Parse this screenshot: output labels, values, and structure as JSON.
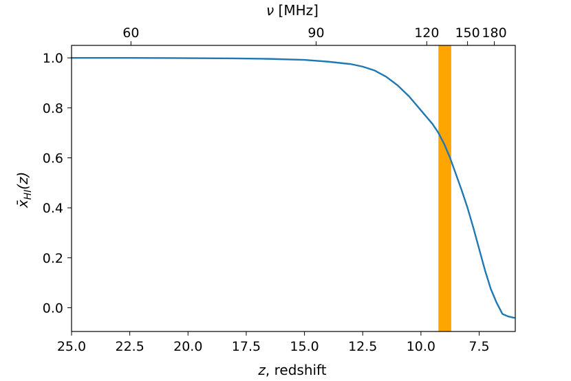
{
  "chart_data": {
    "type": "line",
    "xlabel_var": "z",
    "xlabel_rest": ", redshift",
    "ylabel_main": "x̄",
    "ylabel_sub": "HI",
    "ylabel_arg": "(z)",
    "top_xlabel_var": "ν",
    "top_xlabel_rest": " [MHz]",
    "xlim": [
      25.0,
      5.95
    ],
    "ylim": [
      -0.095,
      1.05
    ],
    "x_ticks": [
      {
        "value": 25.0,
        "label": "25.0"
      },
      {
        "value": 22.5,
        "label": "22.5"
      },
      {
        "value": 20.0,
        "label": "20.0"
      },
      {
        "value": 17.5,
        "label": "17.5"
      },
      {
        "value": 15.0,
        "label": "15.0"
      },
      {
        "value": 12.5,
        "label": "12.5"
      },
      {
        "value": 10.0,
        "label": "10.0"
      },
      {
        "value": 7.5,
        "label": "7.5"
      }
    ],
    "y_ticks": [
      {
        "value": 0.0,
        "label": "0.0"
      },
      {
        "value": 0.2,
        "label": "0.2"
      },
      {
        "value": 0.4,
        "label": "0.4"
      },
      {
        "value": 0.6,
        "label": "0.6"
      },
      {
        "value": 0.8,
        "label": "0.8"
      },
      {
        "value": 1.0,
        "label": "1.0"
      }
    ],
    "top_ticks": [
      {
        "z": 22.45,
        "label": "60"
      },
      {
        "z": 14.5,
        "label": "90"
      },
      {
        "z": 9.75,
        "label": "120"
      },
      {
        "z": 8.0,
        "label": "150"
      },
      {
        "z": 6.85,
        "label": "180"
      }
    ],
    "band": {
      "z_from": 9.25,
      "z_to": 8.7,
      "color": "#ffa500"
    },
    "series": [
      {
        "color": "#1f77b4",
        "x": [
          25.0,
          22.5,
          20.0,
          18.0,
          16.5,
          15.0,
          14.0,
          13.0,
          12.5,
          12.0,
          11.5,
          11.0,
          10.5,
          10.0,
          9.5,
          9.25,
          9.0,
          8.75,
          8.5,
          8.25,
          8.0,
          7.75,
          7.5,
          7.25,
          7.0,
          6.75,
          6.5,
          6.25,
          6.0
        ],
        "y": [
          1.0,
          1.0,
          0.999,
          0.998,
          0.996,
          0.992,
          0.985,
          0.975,
          0.965,
          0.95,
          0.925,
          0.89,
          0.845,
          0.79,
          0.735,
          0.7,
          0.655,
          0.6,
          0.535,
          0.47,
          0.4,
          0.32,
          0.235,
          0.15,
          0.075,
          0.02,
          -0.025,
          -0.035,
          -0.04
        ]
      }
    ]
  }
}
